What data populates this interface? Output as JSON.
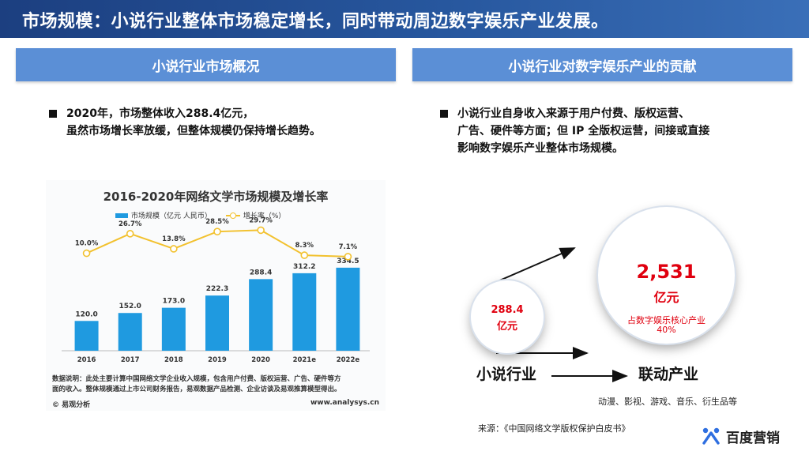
{
  "page": {
    "title": "市场规模：小说行业整体市场稳定增长，同时带动周边数字娱乐产业发展。"
  },
  "left": {
    "header": "小说行业市场概况",
    "bullet_lines": [
      "2020年，市场整体收入288.4亿元，",
      "虽然市场增长率放缓，但整体规模仍保持增长趋势。"
    ]
  },
  "right": {
    "header": "小说行业对数字娱乐产业的贡献",
    "bullet_lines": [
      "小说行业自身收入来源于用户付费、版权运营、",
      "广告、硬件等方面；但 IP 全版权运营，间接或直接",
      "影响数字娱乐产业整体市场规模。"
    ]
  },
  "diagram": {
    "small_value": "288.4",
    "small_unit": "亿元",
    "big_value": "2,531",
    "big_unit": "亿元",
    "big_share_label": "占数字娱乐核心产业",
    "big_share_value": "40%",
    "from_label": "小说行业",
    "to_label": "联动产业",
    "sub_items": "动漫、影视、游戏、音乐、衍生品等",
    "source": "来源：《中国网络文学版权保护白皮书》"
  },
  "brand": {
    "name": "百度营销",
    "icon": "baidu-marketing-logo-icon",
    "color": "#2f6fe0"
  },
  "chart_data": {
    "type": "bar",
    "title": "2016-2020年网络文学市场规模及增长率",
    "categories": [
      "2016",
      "2017",
      "2018",
      "2019",
      "2020",
      "2021e",
      "2022e"
    ],
    "series": [
      {
        "name": "市场规模（亿元 人民币）",
        "type": "bar",
        "values": [
          120.0,
          152.0,
          173.0,
          222.3,
          288.4,
          312.2,
          334.5
        ],
        "labels": [
          "120.0",
          "152.0",
          "173.0",
          "222.3",
          "288.4",
          "312.2",
          "334.5"
        ],
        "color": "#1f9ae0"
      },
      {
        "name": "增长率（%）",
        "type": "line",
        "values": [
          10.0,
          26.7,
          13.8,
          28.5,
          29.7,
          8.3,
          7.1
        ],
        "labels": [
          "10.0%",
          "26.7%",
          "13.8%",
          "28.5%",
          "29.7%",
          "8.3%",
          "7.1%"
        ],
        "color": "#f2c12e"
      }
    ],
    "legend_position": "top",
    "grid": false,
    "note_lines": [
      "数据说明：此处主要计算中国网络文学企业收入规模，包含用户付费、版权运营、广告、硬件等方",
      "面的收入。整体规模通过上市公司财务报告，易观数据产品检测、企业访谈及易观推算模型得出。"
    ],
    "logo": "© 易观分析",
    "url": "www.analysys.cn"
  }
}
